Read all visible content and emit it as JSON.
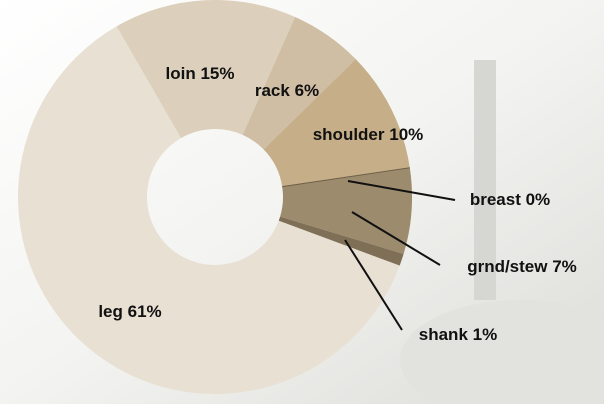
{
  "chart_data": {
    "type": "pie",
    "categories": [
      "loin",
      "rack",
      "shoulder",
      "breast",
      "grnd/stew",
      "shank",
      "leg"
    ],
    "values": [
      15,
      6,
      10,
      0,
      7,
      1,
      61
    ],
    "value_labels": [
      "15%",
      "6%",
      "10%",
      "0%",
      "7%",
      "1%",
      "61%"
    ],
    "colors": [
      "#dccfbb",
      "#cfbea4",
      "#c6ae88",
      "#6e604a",
      "#9d8b6e",
      "#7f6f56",
      "#e8e0d2"
    ],
    "donut": true
  }
}
